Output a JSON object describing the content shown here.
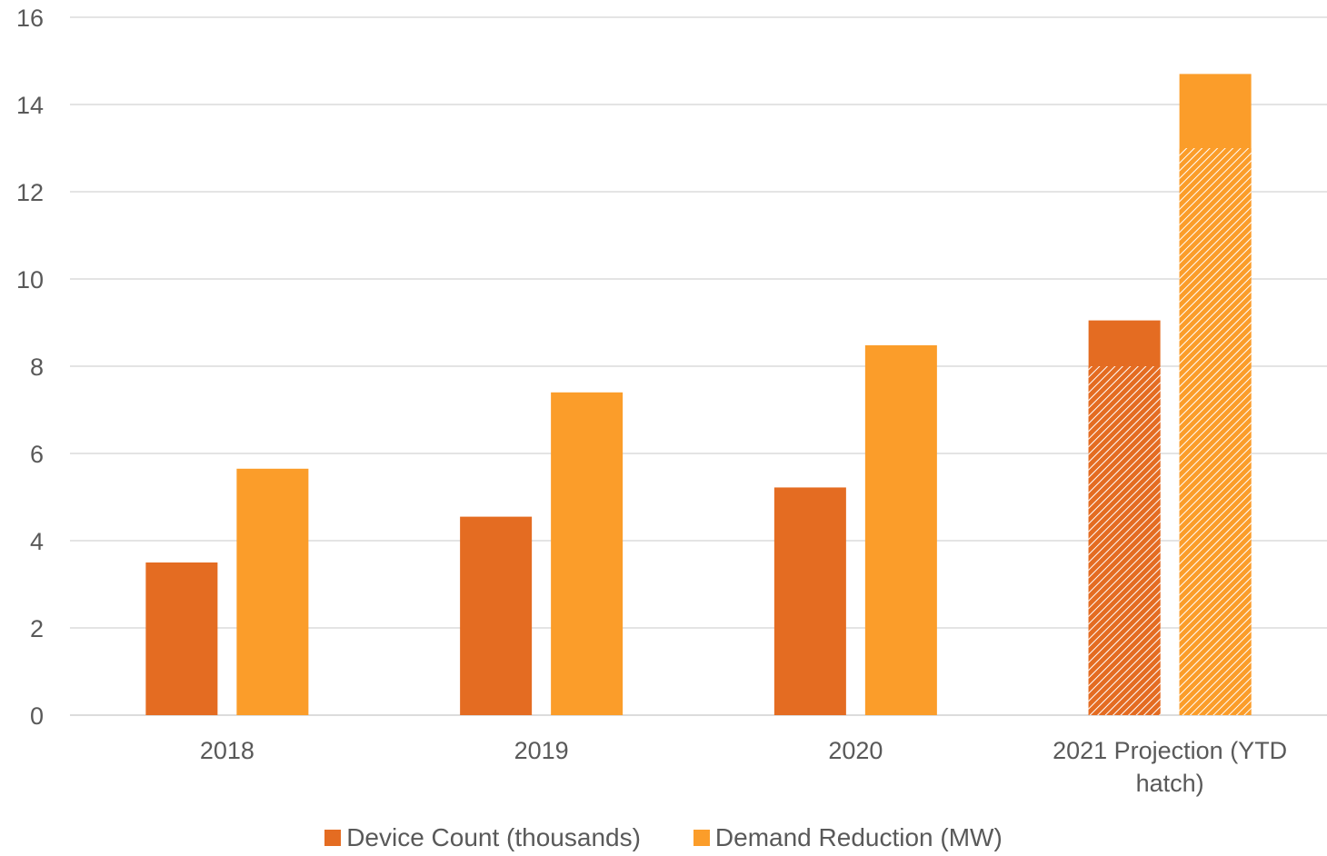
{
  "chart_data": {
    "type": "bar",
    "categories": [
      "2018",
      "2019",
      "2020",
      "2021 Projection (YTD hatch)"
    ],
    "series": [
      {
        "name": "Device Count (thousands)",
        "color": "#e46c22",
        "values": [
          3.5,
          4.55,
          5.22,
          9.05
        ],
        "ytd_hatched": [
          null,
          null,
          null,
          8.0
        ]
      },
      {
        "name": "Demand Reduction (MW)",
        "color": "#fb9d2a",
        "values": [
          5.65,
          7.4,
          8.48,
          14.7
        ],
        "ytd_hatched": [
          null,
          null,
          null,
          13.0
        ]
      }
    ],
    "ylim": [
      0,
      16
    ],
    "yticks": [
      "0",
      "2",
      "4",
      "6",
      "8",
      "10",
      "12",
      "14",
      "16"
    ],
    "grid": true,
    "legend_position": "bottom"
  }
}
